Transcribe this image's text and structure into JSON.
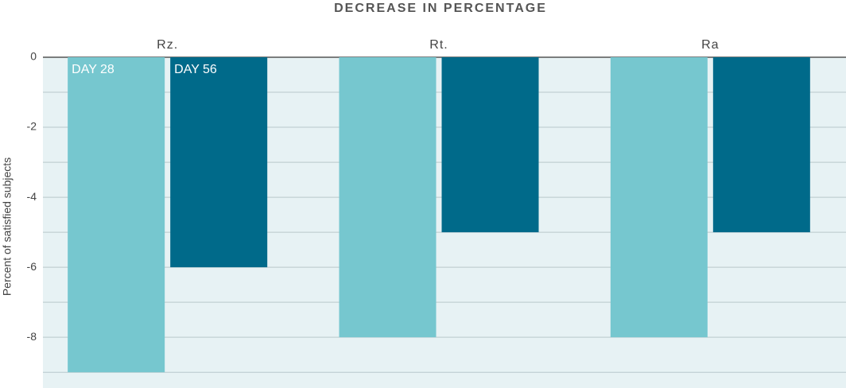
{
  "chart_data": {
    "type": "bar",
    "title": "DECREASE IN PERCENTAGE",
    "y_label": "Percent of satisfied subjects",
    "categories": [
      "Rz.",
      "Rt.",
      "Ra"
    ],
    "series": [
      {
        "name": "DAY 28",
        "color": "#76c7cf",
        "values": [
          -9,
          -8,
          -8
        ]
      },
      {
        "name": "DAY 56",
        "color": "#006a8a",
        "values": [
          -6,
          -5,
          -5
        ]
      }
    ],
    "ylim": [
      -9.45,
      0
    ],
    "yticks": [
      0,
      -2,
      -4,
      -6,
      -8
    ],
    "minor_yticks": [
      -1,
      -3,
      -5,
      -7,
      -9
    ],
    "grid": true
  }
}
